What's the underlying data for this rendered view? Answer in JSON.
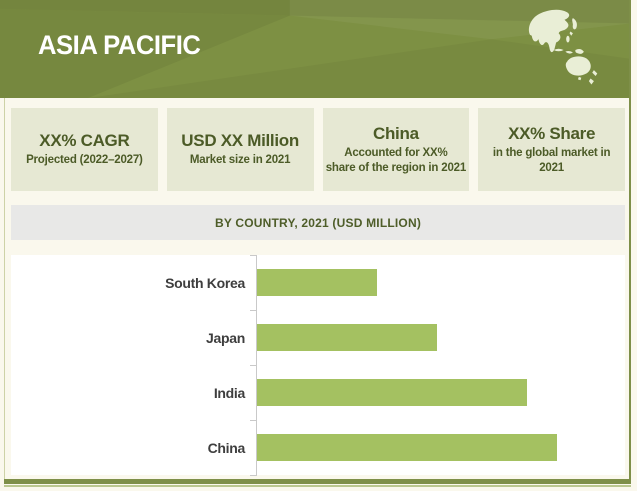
{
  "region_banner": {
    "title": "ASIA PACIFIC",
    "map_icon": "asia-pacific-map",
    "banner_color": "#7d9043",
    "map_fill": "#e9eed6"
  },
  "stat_cards": [
    {
      "title": "XX% CAGR",
      "subtitle": "Projected (2022–2027)"
    },
    {
      "title": "USD XX Million",
      "subtitle": "Market size in 2021"
    },
    {
      "title": "China",
      "subtitle": "Accounted for XX%\nshare of the region in 2021"
    },
    {
      "title": "XX% Share",
      "subtitle": "in the global market in 2021"
    }
  ],
  "chart_header": {
    "label": "BY COUNTRY, 2021 (USD MILLION)"
  },
  "chart_data": {
    "type": "bar",
    "orientation": "horizontal",
    "title": "BY COUNTRY, 2021 (USD MILLION)",
    "categories": [
      "South Korea",
      "Japan",
      "India",
      "China"
    ],
    "values": [
      40,
      60,
      90,
      100
    ],
    "value_note": "x-axis is unlabeled in the image; values estimated from bar lengths as percent of longest bar (China = 100)",
    "xlabel": "",
    "ylabel": "",
    "xlim": [
      0,
      100
    ],
    "legend": false,
    "grid": false,
    "bar_color": "#a4c161",
    "axis_color": "#c9c9c9"
  },
  "colors": {
    "banner_green": "#7d9043",
    "bar_green": "#a4c161",
    "card_bg": "#e6e8d3",
    "card_text": "#4c5b27",
    "chart_header_bg": "#e8e8e7",
    "frame_olive": "#7e8f49",
    "page_bg": "#faf8ed"
  }
}
